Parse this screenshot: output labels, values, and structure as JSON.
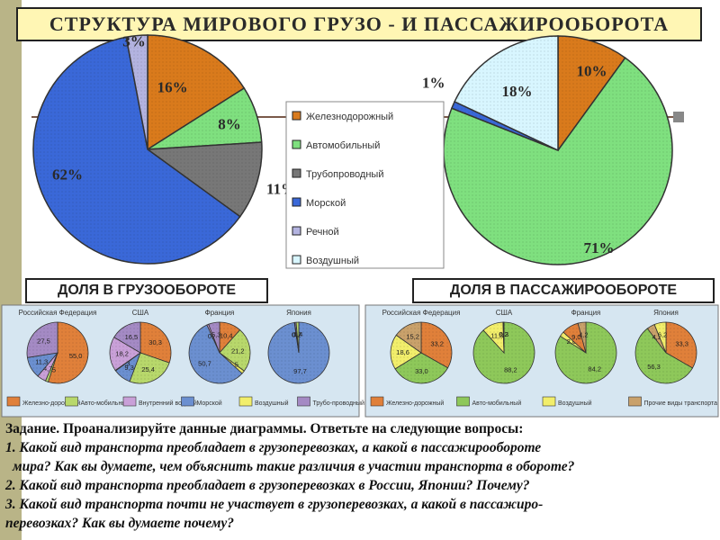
{
  "title": "СТРУКТУРА МИРОВОГО ГРУЗО - И  ПАССАЖИРООБОРОТА",
  "colors": {
    "rail": "#d97a1c",
    "auto": "#7fe07f",
    "pipeline": "#777777",
    "sea": "#3a68d8",
    "river": "#b3b3e0",
    "air": "#d8f6ff",
    "auto_pass": "#82dc8a",
    "sidebar": "#b9b487",
    "title_bg": "#fff6b4",
    "panel_bg": "#d6e6f1"
  },
  "chart_data": [
    {
      "type": "pie",
      "id": "cargo",
      "title": "ДОЛЯ В ГРУЗООБОРОТЕ",
      "slices": [
        {
          "name": "Железнодорожный",
          "value": 16,
          "label": "16%"
        },
        {
          "name": "Автомобильный",
          "value": 8,
          "label": "8%"
        },
        {
          "name": "Трубопроводный",
          "value": 11,
          "label": "11%"
        },
        {
          "name": "Морской",
          "value": 62,
          "label": "62%"
        },
        {
          "name": "Речной",
          "value": 3,
          "label": "3%"
        }
      ]
    },
    {
      "type": "pie",
      "id": "passenger",
      "title": "ДОЛЯ В ПАССАЖИРООБОРОТЕ",
      "slices": [
        {
          "name": "Железнодорожный",
          "value": 10,
          "label": "10%"
        },
        {
          "name": "Автомобильный",
          "value": 71,
          "label": "71%"
        },
        {
          "name": "Морской",
          "value": 1,
          "label": "1%"
        },
        {
          "name": "Воздушный",
          "value": 18,
          "label": "18%"
        }
      ]
    },
    {
      "type": "pie",
      "id": "cargo-russia",
      "title": "Российская Федерация",
      "slices": [
        {
          "name": "Железнодорожный",
          "value": 55.0,
          "label": "55,0"
        },
        {
          "name": "Автомобильный",
          "value": 1.5,
          "label": "1,5"
        },
        {
          "name": "Внутренний водный",
          "value": 4.7,
          "label": "4,7"
        },
        {
          "name": "Морской",
          "value": 11.3,
          "label": "11,3"
        },
        {
          "name": "Трубопроводный",
          "value": 27.5,
          "label": "27,5"
        }
      ]
    },
    {
      "type": "pie",
      "id": "cargo-usa",
      "title": "США",
      "slices": [
        {
          "name": "Железнодорожный",
          "value": 30.3,
          "label": "30,3"
        },
        {
          "name": "Автомобильный",
          "value": 25.4,
          "label": "25,4"
        },
        {
          "name": "Морской",
          "value": 9.3,
          "label": "9,3"
        },
        {
          "name": "Воздушный",
          "value": 0.3,
          "label": "0,3"
        },
        {
          "name": "Внутренний водный",
          "value": 18.2,
          "label": "18,2"
        },
        {
          "name": "Трубопроводный",
          "value": 16.5,
          "label": "16,5"
        }
      ]
    },
    {
      "type": "pie",
      "id": "cargo-france",
      "title": "Франция",
      "slices": [
        {
          "name": "Железнодорожный",
          "value": 10.4,
          "label": "10,4"
        },
        {
          "name": "Автомобильный",
          "value": 21.2,
          "label": "21,2"
        },
        {
          "name": "Воздушный",
          "value": 1.5,
          "label": "1,5"
        },
        {
          "name": "Морской",
          "value": 50.7,
          "label": "50,7"
        },
        {
          "name": "Внутренний водный",
          "value": 0.8,
          "label": "0,8"
        },
        {
          "name": "Трубопроводный",
          "value": 5.3,
          "label": "5,3"
        }
      ]
    },
    {
      "type": "pie",
      "id": "cargo-japan",
      "title": "Япония",
      "slices": [
        {
          "name": "Морской",
          "value": 97.7,
          "label": "97,7"
        },
        {
          "name": "Железнодорожный",
          "value": 0.2,
          "label": "0,2"
        },
        {
          "name": "Трубопроводный",
          "value": 0.7,
          "label": "0,7"
        },
        {
          "name": "Автомобильный",
          "value": 1.4,
          "label": "1,4"
        }
      ]
    },
    {
      "type": "pie",
      "id": "pass-russia",
      "title": "Российская Федерация",
      "slices": [
        {
          "name": "Железнодорожный",
          "value": 33.2,
          "label": "33,2"
        },
        {
          "name": "Автомобильный",
          "value": 33.0,
          "label": "33,0"
        },
        {
          "name": "Воздушный",
          "value": 18.6,
          "label": "18,6"
        },
        {
          "name": "Прочие виды транспорта",
          "value": 15.2,
          "label": "15,2"
        }
      ]
    },
    {
      "type": "pie",
      "id": "pass-usa",
      "title": "США",
      "slices": [
        {
          "name": "Автомобильный",
          "value": 88.2,
          "label": "88,2"
        },
        {
          "name": "Воздушный",
          "value": 11.3,
          "label": "11,3"
        },
        {
          "name": "Прочие виды транспорта",
          "value": 0.2,
          "label": "0,2"
        },
        {
          "name": "Железнодорожный",
          "value": 0.3,
          "label": "0,3"
        }
      ]
    },
    {
      "type": "pie",
      "id": "pass-france",
      "title": "Франция",
      "slices": [
        {
          "name": "Автомобильный",
          "value": 84.2,
          "label": "84,2"
        },
        {
          "name": "Воздушный",
          "value": 2.6,
          "label": "2,6"
        },
        {
          "name": "Железнодорожный",
          "value": 9.0,
          "label": "9,0"
        },
        {
          "name": "Прочие виды транспорта",
          "value": 4.2,
          "label": "4,2"
        }
      ]
    },
    {
      "type": "pie",
      "id": "pass-japan",
      "title": "Япония",
      "slices": [
        {
          "name": "Железнодорожный",
          "value": 33.3,
          "label": "33,3"
        },
        {
          "name": "Автомобильный",
          "value": 56.3,
          "label": "56,3"
        },
        {
          "name": "Прочие виды транспорта",
          "value": 4.2,
          "label": "4,2"
        },
        {
          "name": "Воздушный",
          "value": 6.2,
          "label": "6,2"
        }
      ]
    }
  ],
  "legend": [
    {
      "label": "Железнодорожный",
      "color": "#d97a1c"
    },
    {
      "label": "Автомобильный",
      "color": "#7fe07f"
    },
    {
      "label": "Трубопроводный",
      "color": "#777777"
    },
    {
      "label": "Морской",
      "color": "#3a68d8"
    },
    {
      "label": "Речной",
      "color": "#b3b3e0"
    },
    {
      "label": "Воздушный",
      "color": "#d8f6ff"
    }
  ],
  "cargo_label": "ДОЛЯ В ГРУЗООБОРОТЕ",
  "passenger_label": "ДОЛЯ В ПАССАЖИРООБОРОТЕ",
  "mini_legend_cargo": [
    {
      "label": "Железно-дорожный",
      "color": "#e0803a"
    },
    {
      "label": "Авто-мобильный",
      "color": "#b8d86b"
    },
    {
      "label": "Внутренний водный",
      "color": "#c9a0d8"
    },
    {
      "label": "Морской",
      "color": "#6b8fd0"
    },
    {
      "label": "Воздушный",
      "color": "#f2ee6b"
    },
    {
      "label": "Трубо-проводный",
      "color": "#a48ac4"
    }
  ],
  "mini_legend_pass": [
    {
      "label": "Железно-дорожный",
      "color": "#e0803a"
    },
    {
      "label": "Авто-мобильный",
      "color": "#8ec85a"
    },
    {
      "label": "Воздушный",
      "color": "#f2ee6b"
    },
    {
      "label": "Прочие виды транспорта",
      "color": "#c9a16b"
    }
  ],
  "task": {
    "head": "Задание. Проанализируйте данные диаграммы. Ответьте на следующие вопросы:",
    "q1a": "1. Какой вид транспорта преобладает в грузоперевозках, а какой в пассажирообороте",
    "q1b": "мира? Как вы думаете, чем объяснить такие различия в участии транспорта в обороте?",
    "q2": "2. Какой вид транспорта преобладает в грузоперевозках в России, Японии? Почему?",
    "q3a": "3. Какой вид транспорта почти не участвует в грузоперевозках, а какой в пассажиро-",
    "q3b": "перевозках? Как вы думаете почему?"
  }
}
